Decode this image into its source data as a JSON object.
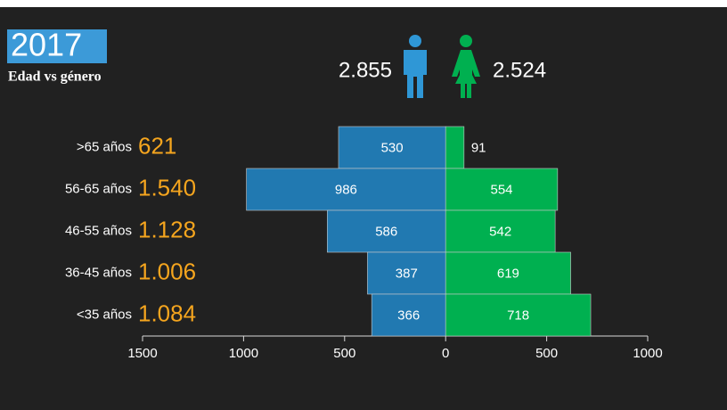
{
  "chart_data": {
    "type": "pyramid",
    "year": "2017",
    "title": "Edad vs género",
    "categories": [
      ">65 años",
      "56-65 años",
      "46-55 años",
      "36-45 años",
      "<35 años"
    ],
    "totals": {
      "values": [
        621,
        1540,
        1128,
        1006,
        1084
      ],
      "value_labels": [
        "621",
        "1.540",
        "1.128",
        "1.006",
        "1.084"
      ],
      "color": "#f5a51e"
    },
    "series": [
      {
        "color": "#2179b1",
        "side": "left",
        "values": [
          530,
          986,
          586,
          387,
          366
        ],
        "total": {
          "value": 2855,
          "label": "2.855"
        }
      },
      {
        "color": "#00b050",
        "side": "right",
        "values": [
          91,
          554,
          542,
          619,
          718
        ],
        "total": {
          "value": 2524,
          "label": "2.524"
        }
      }
    ],
    "xlim": [
      -1500,
      1000
    ],
    "xticks": [
      {
        "value": -1500,
        "label": "1500"
      },
      {
        "value": -1000,
        "label": "1000"
      },
      {
        "value": -500,
        "label": "500"
      },
      0,
      500,
      1000
    ]
  }
}
